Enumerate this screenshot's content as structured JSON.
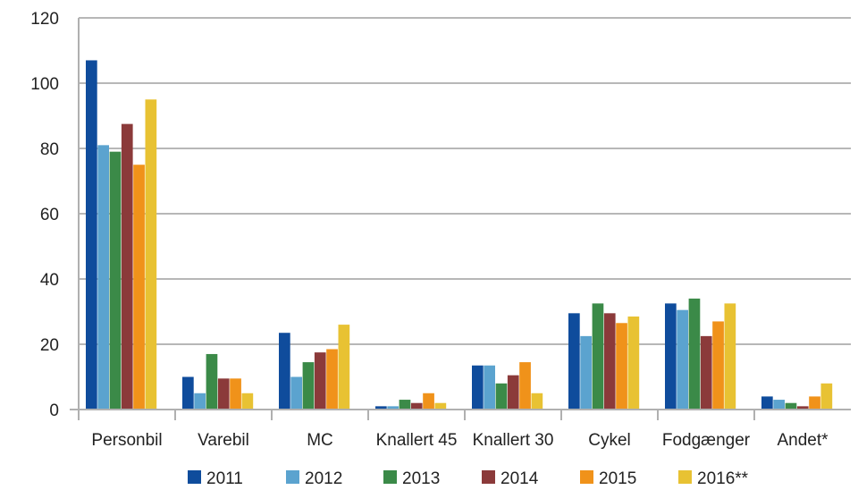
{
  "chart_data": {
    "type": "bar",
    "title": "",
    "xlabel": "",
    "ylabel": "",
    "ylim": [
      0,
      120
    ],
    "yticks": [
      0,
      20,
      40,
      60,
      80,
      100,
      120
    ],
    "grid": true,
    "legend_position": "bottom",
    "categories": [
      "Personbil",
      "Varebil",
      "MC",
      "Knallert 45",
      "Knallert 30",
      "Cykel",
      "Fodgænger",
      "Andet*"
    ],
    "series": [
      {
        "name": "2011",
        "color": "#0f4c9c",
        "values": [
          107,
          10,
          23.5,
          1,
          13.5,
          29.5,
          32.5,
          4
        ]
      },
      {
        "name": "2012",
        "color": "#5ba3cf",
        "values": [
          81,
          5,
          10,
          1,
          13.5,
          22.5,
          30.5,
          3
        ]
      },
      {
        "name": "2013",
        "color": "#3b8a48",
        "values": [
          79,
          17,
          14.5,
          3,
          8,
          32.5,
          34,
          2
        ]
      },
      {
        "name": "2014",
        "color": "#8b3a3a",
        "values": [
          87.5,
          9.5,
          17.5,
          2,
          10.5,
          29.5,
          22.5,
          1
        ]
      },
      {
        "name": "2015",
        "color": "#f0921a",
        "values": [
          75,
          9.5,
          18.5,
          5,
          14.5,
          26.5,
          27,
          4
        ]
      },
      {
        "name": "2016**",
        "color": "#e8c233",
        "values": [
          95,
          5,
          26,
          2,
          5,
          28.5,
          32.5,
          8
        ]
      }
    ]
  }
}
